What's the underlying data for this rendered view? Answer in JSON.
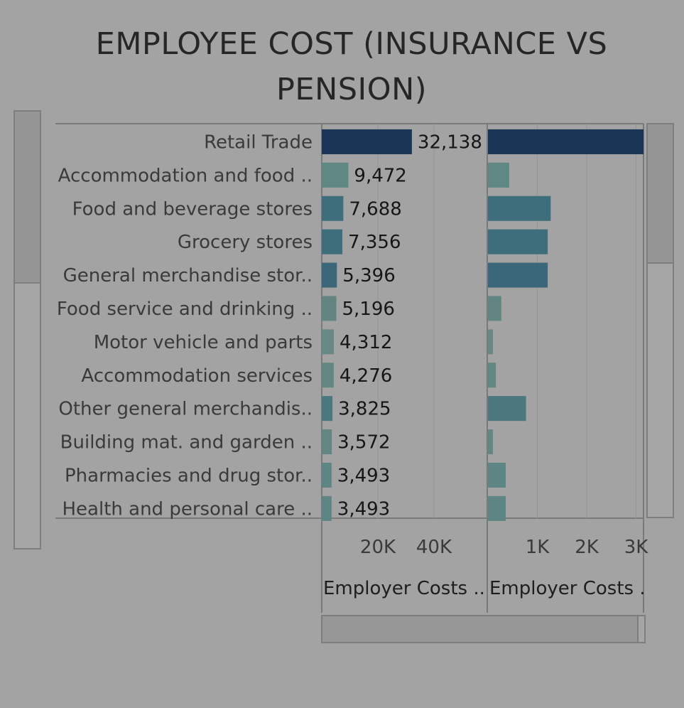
{
  "title_line1": "EMPLOYEE COST (INSURANCE VS",
  "title_line2": "PENSION)",
  "chart_data": {
    "type": "bar",
    "orientation": "horizontal",
    "categories": [
      "Retail Trade",
      "Accommodation and food ..",
      "Food and beverage stores",
      "Grocery stores",
      "General merchandise stor..",
      "Food service and drinking ..",
      "Motor vehicle and parts",
      "Accommodation services",
      "Other general merchandis..",
      "Building mat. and garden ..",
      "Pharmacies and drug stor..",
      "Health and personal care .."
    ],
    "value_labels": [
      "32,138",
      "9,472",
      "7,688",
      "7,356",
      "5,396",
      "5,196",
      "4,312",
      "4,276",
      "3,825",
      "3,572",
      "3,493",
      "3,493"
    ],
    "series": [
      {
        "axis_title": "Employer Costs ..",
        "values": [
          32138,
          9472,
          7688,
          7356,
          5396,
          5196,
          4312,
          4276,
          3825,
          3572,
          3493,
          3493
        ],
        "ticks": [
          20000,
          40000
        ],
        "tick_labels": [
          "20K",
          "40K"
        ],
        "xlim": [
          0,
          59000
        ],
        "colors": [
          "#1a3555",
          "#5f8784",
          "#3e6d7c",
          "#3e6d7c",
          "#3b677a",
          "#628582",
          "#668985",
          "#628783",
          "#4b777f",
          "#628783",
          "#5d8584",
          "#5d8584"
        ]
      },
      {
        "axis_title": "Employer Costs .",
        "values": [
          3150,
          430,
          1270,
          1210,
          1210,
          270,
          100,
          160,
          770,
          100,
          360,
          360
        ],
        "ticks": [
          1000,
          2000,
          3000
        ],
        "tick_labels": [
          "1K",
          "2K",
          "3K"
        ],
        "xlim": [
          0,
          3150
        ],
        "colors": [
          "#1a3555",
          "#5f8784",
          "#3e6d7c",
          "#3e6d7c",
          "#3b677a",
          "#628582",
          "#668985",
          "#628783",
          "#4b777f",
          "#628783",
          "#5d8584",
          "#5d8584"
        ]
      }
    ],
    "grid": true,
    "legend": "none"
  }
}
